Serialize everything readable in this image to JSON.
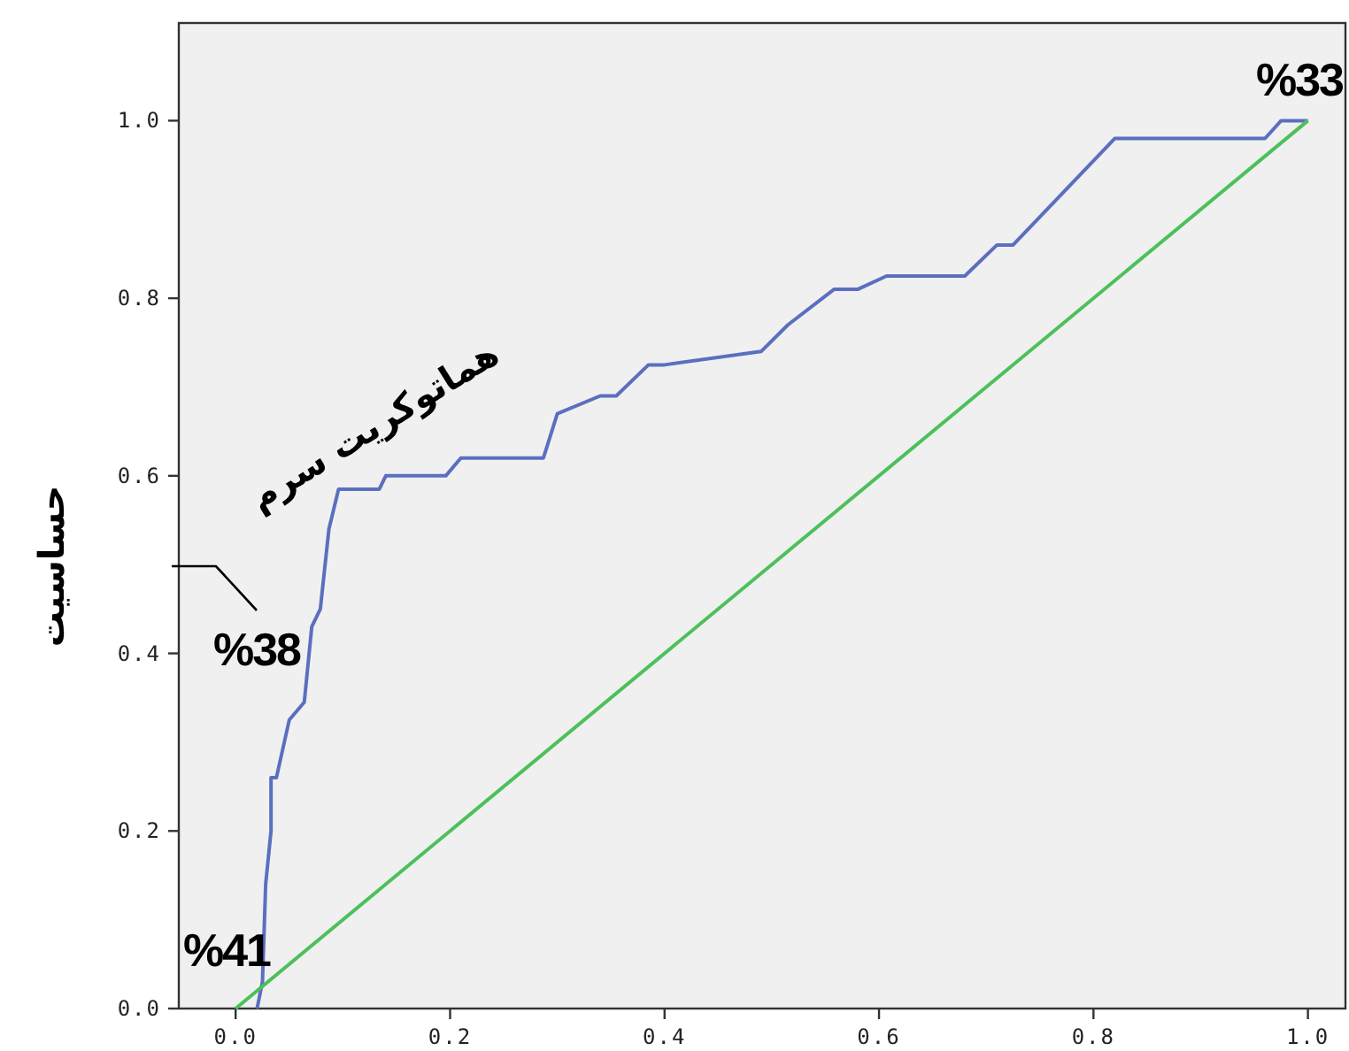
{
  "chart_data": {
    "type": "line",
    "ylabel": "حساسیت",
    "xlim": [
      -0.053,
      1.035
    ],
    "ylim": [
      0,
      1.11
    ],
    "xticks": [
      {
        "value": 0,
        "label": "0.0"
      },
      {
        "value": 0.2,
        "label": "0.2"
      },
      {
        "value": 0.4,
        "label": "0.4"
      },
      {
        "value": 0.6,
        "label": "0.6"
      },
      {
        "value": 0.8,
        "label": "0.8"
      },
      {
        "value": 1,
        "label": "1.0"
      }
    ],
    "yticks": [
      {
        "value": 0,
        "label": "0.0"
      },
      {
        "value": 0.2,
        "label": "0.2"
      },
      {
        "value": 0.4,
        "label": "0.4"
      },
      {
        "value": 0.6,
        "label": "0.6"
      },
      {
        "value": 0.8,
        "label": "0.8"
      },
      {
        "value": 1,
        "label": "1.0"
      }
    ],
    "marker": "none",
    "line_style": "solid",
    "series": [
      {
        "name": "هماتوکریت سرم",
        "color": "#5b6fc0",
        "x": [
          0.02,
          0.025,
          0.028,
          0.033,
          0.033,
          0.038,
          0.05,
          0.064,
          0.071,
          0.079,
          0.087,
          0.096,
          0.134,
          0.14,
          0.196,
          0.21,
          0.287,
          0.3,
          0.34,
          0.355,
          0.385,
          0.4,
          0.49,
          0.515,
          0.558,
          0.58,
          0.607,
          0.68,
          0.71,
          0.725,
          0.82,
          0.96,
          0.975,
          1.0
        ],
        "values": [
          0,
          0.03,
          0.14,
          0.2,
          0.26,
          0.26,
          0.325,
          0.345,
          0.43,
          0.45,
          0.54,
          0.585,
          0.585,
          0.6,
          0.6,
          0.62,
          0.62,
          0.67,
          0.69,
          0.69,
          0.725,
          0.725,
          0.74,
          0.77,
          0.81,
          0.81,
          0.825,
          0.825,
          0.86,
          0.86,
          0.98,
          0.98,
          1.0,
          1.0
        ]
      },
      {
        "color": "#4cc05a",
        "x": [
          0,
          1
        ],
        "values": [
          0,
          1
        ]
      }
    ],
    "annotations": [
      "%41",
      "%38",
      "%33"
    ]
  }
}
